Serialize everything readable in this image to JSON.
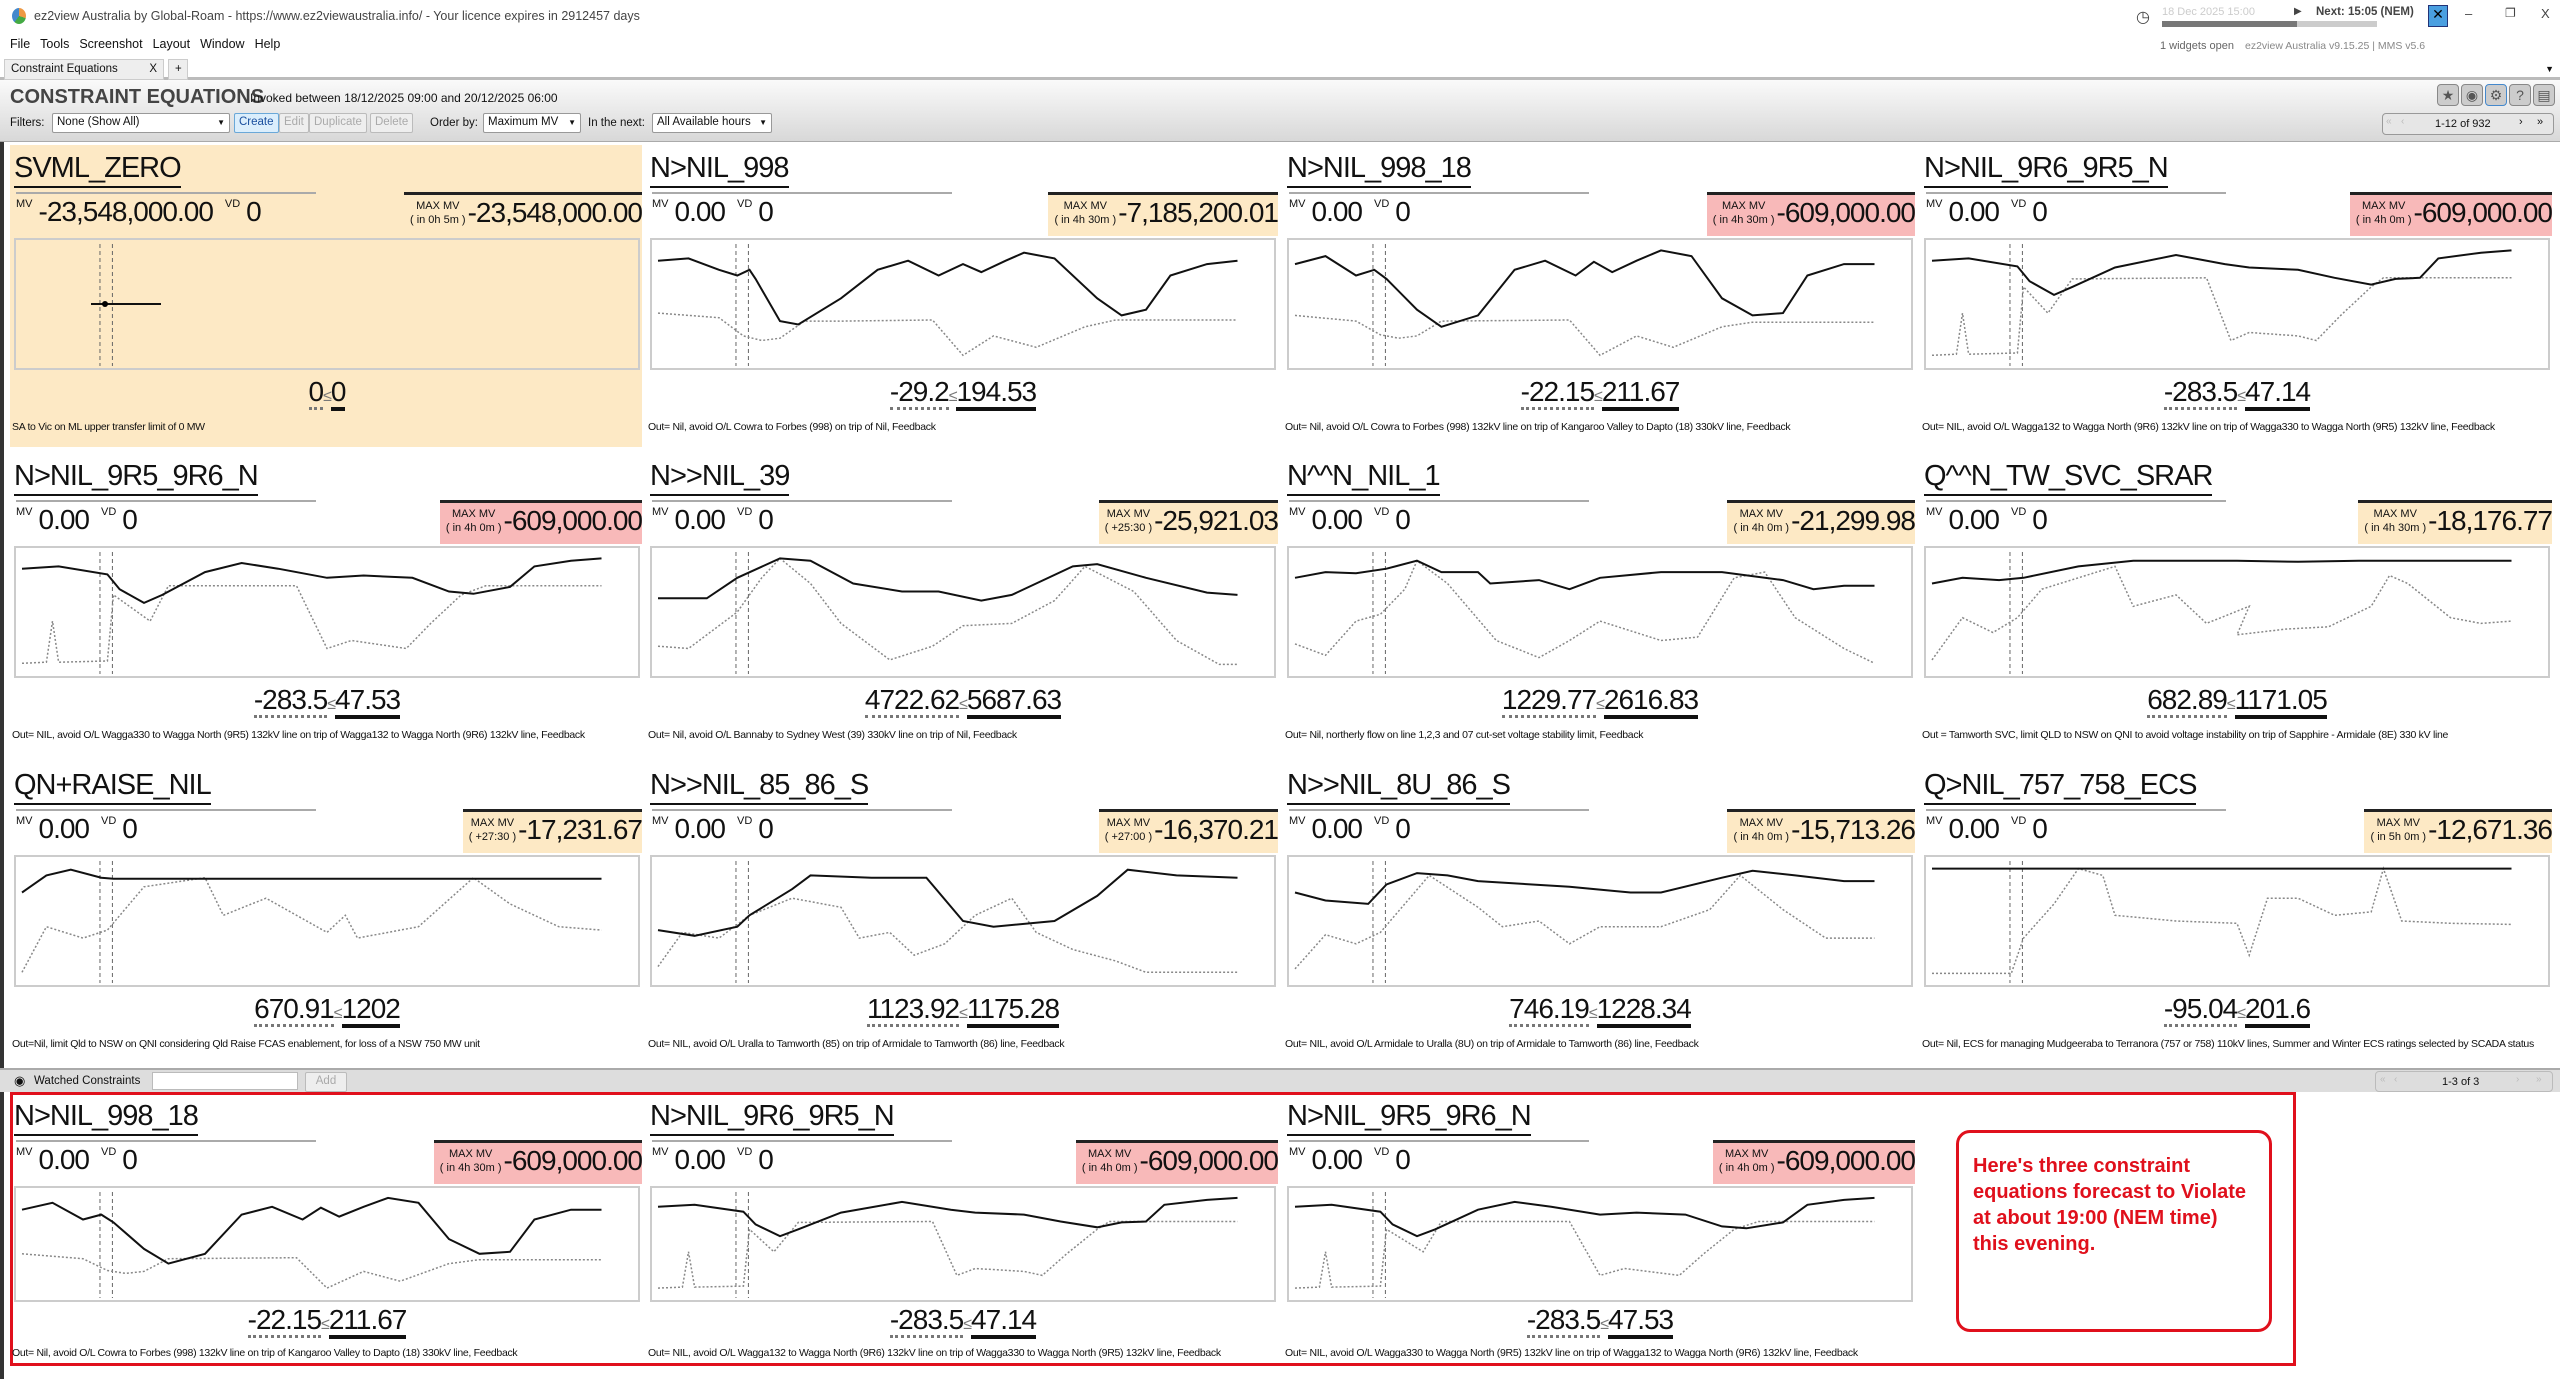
{
  "window": {
    "title": "ez2view Australia by Global-Roam - https://www.ez2viewaustralia.info/ - Your licence expires in 2912457 days",
    "time_display": "18 Dec 2025 15:00",
    "next_label": "Next: 15:05 (NEM)",
    "widgets_open": "1 widgets open",
    "version": "ez2view Australia v9.15.25 | MMS v5.6"
  },
  "menu": [
    "File",
    "Tools",
    "Screenshot",
    "Layout",
    "Window",
    "Help"
  ],
  "tabs": {
    "active": "Constraint Equations",
    "close": "X",
    "add": "+"
  },
  "toolbar": {
    "title": "CONSTRAINT EQUATIONS",
    "invoked": "Invoked between 18/12/2025 09:00 and 20/12/2025 06:00",
    "filters_label": "Filters:",
    "filter_value": "None (Show All)",
    "create": "Create",
    "edit": "Edit",
    "duplicate": "Duplicate",
    "delete": "Delete",
    "order_label": "Order by:",
    "order_value": "Maximum MV",
    "next_label": "In the next:",
    "next_value": "All Available hours",
    "pager": "1-12 of 932"
  },
  "labels": {
    "mv": "MV",
    "vd": "VD",
    "max_mv": "MAX MV",
    "le": "≤"
  },
  "colors": {
    "orange": "#fde9c5",
    "red": "#f8b9b9",
    "annotation": "#e0101c"
  },
  "constraints": [
    {
      "id": "SVML_ZERO",
      "mv": "-23,548,000.00",
      "vd": "0",
      "max_mv": "-23,548,000.00",
      "when": "( in 0h 5m )",
      "severity": "orange",
      "lhs": "0",
      "rhs": "0",
      "desc": "SA to Vic on ML upper transfer limit of 0 MW",
      "highlight": true
    },
    {
      "id": "N>NIL_998",
      "mv": "0.00",
      "vd": "0",
      "max_mv": "-7,185,200.01",
      "when": "( in 4h 30m )",
      "severity": "orange",
      "lhs": "-29.2",
      "rhs": "194.53",
      "desc": "Out= Nil, avoid O/L Cowra to Forbes (998) on trip of Nil, Feedback"
    },
    {
      "id": "N>NIL_998_18",
      "mv": "0.00",
      "vd": "0",
      "max_mv": "-609,000.00",
      "when": "( in 4h 30m )",
      "severity": "red",
      "lhs": "-22.15",
      "rhs": "211.67",
      "desc": "Out= Nil, avoid O/L Cowra to Forbes (998) 132kV line on trip of Kangaroo Valley to Dapto (18) 330kV line, Feedback"
    },
    {
      "id": "N>NIL_9R6_9R5_N",
      "mv": "0.00",
      "vd": "0",
      "max_mv": "-609,000.00",
      "when": "( in 4h 0m )",
      "severity": "red",
      "lhs": "-283.5",
      "rhs": "47.14",
      "desc": "Out= NIL, avoid O/L Wagga132 to Wagga North (9R6) 132kV line on trip of Wagga330 to Wagga North (9R5) 132kV line, Feedback"
    },
    {
      "id": "N>NIL_9R5_9R6_N",
      "mv": "0.00",
      "vd": "0",
      "max_mv": "-609,000.00",
      "when": "( in 4h 0m )",
      "severity": "red",
      "lhs": "-283.5",
      "rhs": "47.53",
      "desc": "Out= NIL, avoid O/L Wagga330 to Wagga North (9R5) 132kV line on trip of Wagga132 to Wagga North (9R6) 132kV line, Feedback"
    },
    {
      "id": "N>>NIL_39",
      "mv": "0.00",
      "vd": "0",
      "max_mv": "-25,921.03",
      "when": "( +25:30 )",
      "severity": "orange",
      "lhs": "4722.62",
      "rhs": "5687.63",
      "desc": "Out= Nil, avoid O/L Bannaby to Sydney West (39) 330kV line on trip of Nil, Feedback"
    },
    {
      "id": "N^^N_NIL_1",
      "mv": "0.00",
      "vd": "0",
      "max_mv": "-21,299.98",
      "when": "( in 4h 0m )",
      "severity": "orange",
      "lhs": "1229.77",
      "rhs": "2616.83",
      "desc": "Out= Nil, northerly flow on line 1,2,3 and 07 cut-set voltage stability limit, Feedback"
    },
    {
      "id": "Q^^N_TW_SVC_SRAR",
      "mv": "0.00",
      "vd": "0",
      "max_mv": "-18,176.77",
      "when": "( in 4h 30m )",
      "severity": "orange",
      "lhs": "682.89",
      "rhs": "1171.05",
      "desc": "Out = Tamworth SVC, limit QLD to NSW on QNI to avoid voltage instability on trip of Sapphire - Armidale (8E) 330 kV line"
    },
    {
      "id": "QN+RAISE_NIL",
      "mv": "0.00",
      "vd": "0",
      "max_mv": "-17,231.67",
      "when": "( +27:30 )",
      "severity": "orange",
      "lhs": "670.91",
      "rhs": "1202",
      "desc": "Out=Nil, limit Qld to NSW on QNI considering Qld Raise FCAS enablement, for loss of a NSW 750 MW unit"
    },
    {
      "id": "N>>NIL_85_86_S",
      "mv": "0.00",
      "vd": "0",
      "max_mv": "-16,370.21",
      "when": "( +27:00 )",
      "severity": "orange",
      "lhs": "1123.92",
      "rhs": "1175.28",
      "desc": "Out= NIL, avoid O/L Uralla to Tamworth (85) on trip of Armidale to Tamworth (86) line, Feedback"
    },
    {
      "id": "N>>NIL_8U_86_S",
      "mv": "0.00",
      "vd": "0",
      "max_mv": "-15,713.26",
      "when": "( in 4h 0m )",
      "severity": "orange",
      "lhs": "746.19",
      "rhs": "1228.34",
      "desc": "Out= NIL, avoid O/L Armidale to Uralla (8U) on trip of Armidale to Tamworth (86) line, Feedback"
    },
    {
      "id": "Q>NIL_757_758_ECS",
      "mv": "0.00",
      "vd": "0",
      "max_mv": "-12,671.36",
      "when": "( in 5h 0m )",
      "severity": "orange",
      "lhs": "-95.04",
      "rhs": "201.6",
      "desc": "Out= Nil, ECS for managing Mudgeeraba to Terranora (757 or 758) 110kV lines, Summer and Winter ECS ratings selected by SCADA status"
    }
  ],
  "watched": {
    "label": "Watched Constraints",
    "input_value": "",
    "add": "Add",
    "pager": "1-3 of 3",
    "items": [
      {
        "id": "N>NIL_998_18",
        "mv": "0.00",
        "vd": "0",
        "max_mv": "-609,000.00",
        "when": "( in 4h 30m )",
        "severity": "red",
        "lhs": "-22.15",
        "rhs": "211.67",
        "desc": "Out= Nil, avoid O/L Cowra to Forbes (998) 132kV line on trip of Kangaroo Valley to Dapto (18) 330kV line, Feedback"
      },
      {
        "id": "N>NIL_9R6_9R5_N",
        "mv": "0.00",
        "vd": "0",
        "max_mv": "-609,000.00",
        "when": "( in 4h 0m )",
        "severity": "red",
        "lhs": "-283.5",
        "rhs": "47.14",
        "desc": "Out= NIL, avoid O/L Wagga132 to Wagga North (9R6) 132kV line on trip of Wagga330 to Wagga North (9R5) 132kV line, Feedback"
      },
      {
        "id": "N>NIL_9R5_9R6_N",
        "mv": "0.00",
        "vd": "0",
        "max_mv": "-609,000.00",
        "when": "( in 4h 0m )",
        "severity": "red",
        "lhs": "-283.5",
        "rhs": "47.53",
        "desc": "Out= NIL, avoid O/L Wagga330 to Wagga North (9R5) 132kV line on trip of Wagga132 to Wagga North (9R6) 132kV line, Feedback"
      }
    ]
  },
  "annotation": "Here's three constraint equations forecast to Violate at about 19:00 (NEM time) this evening."
}
